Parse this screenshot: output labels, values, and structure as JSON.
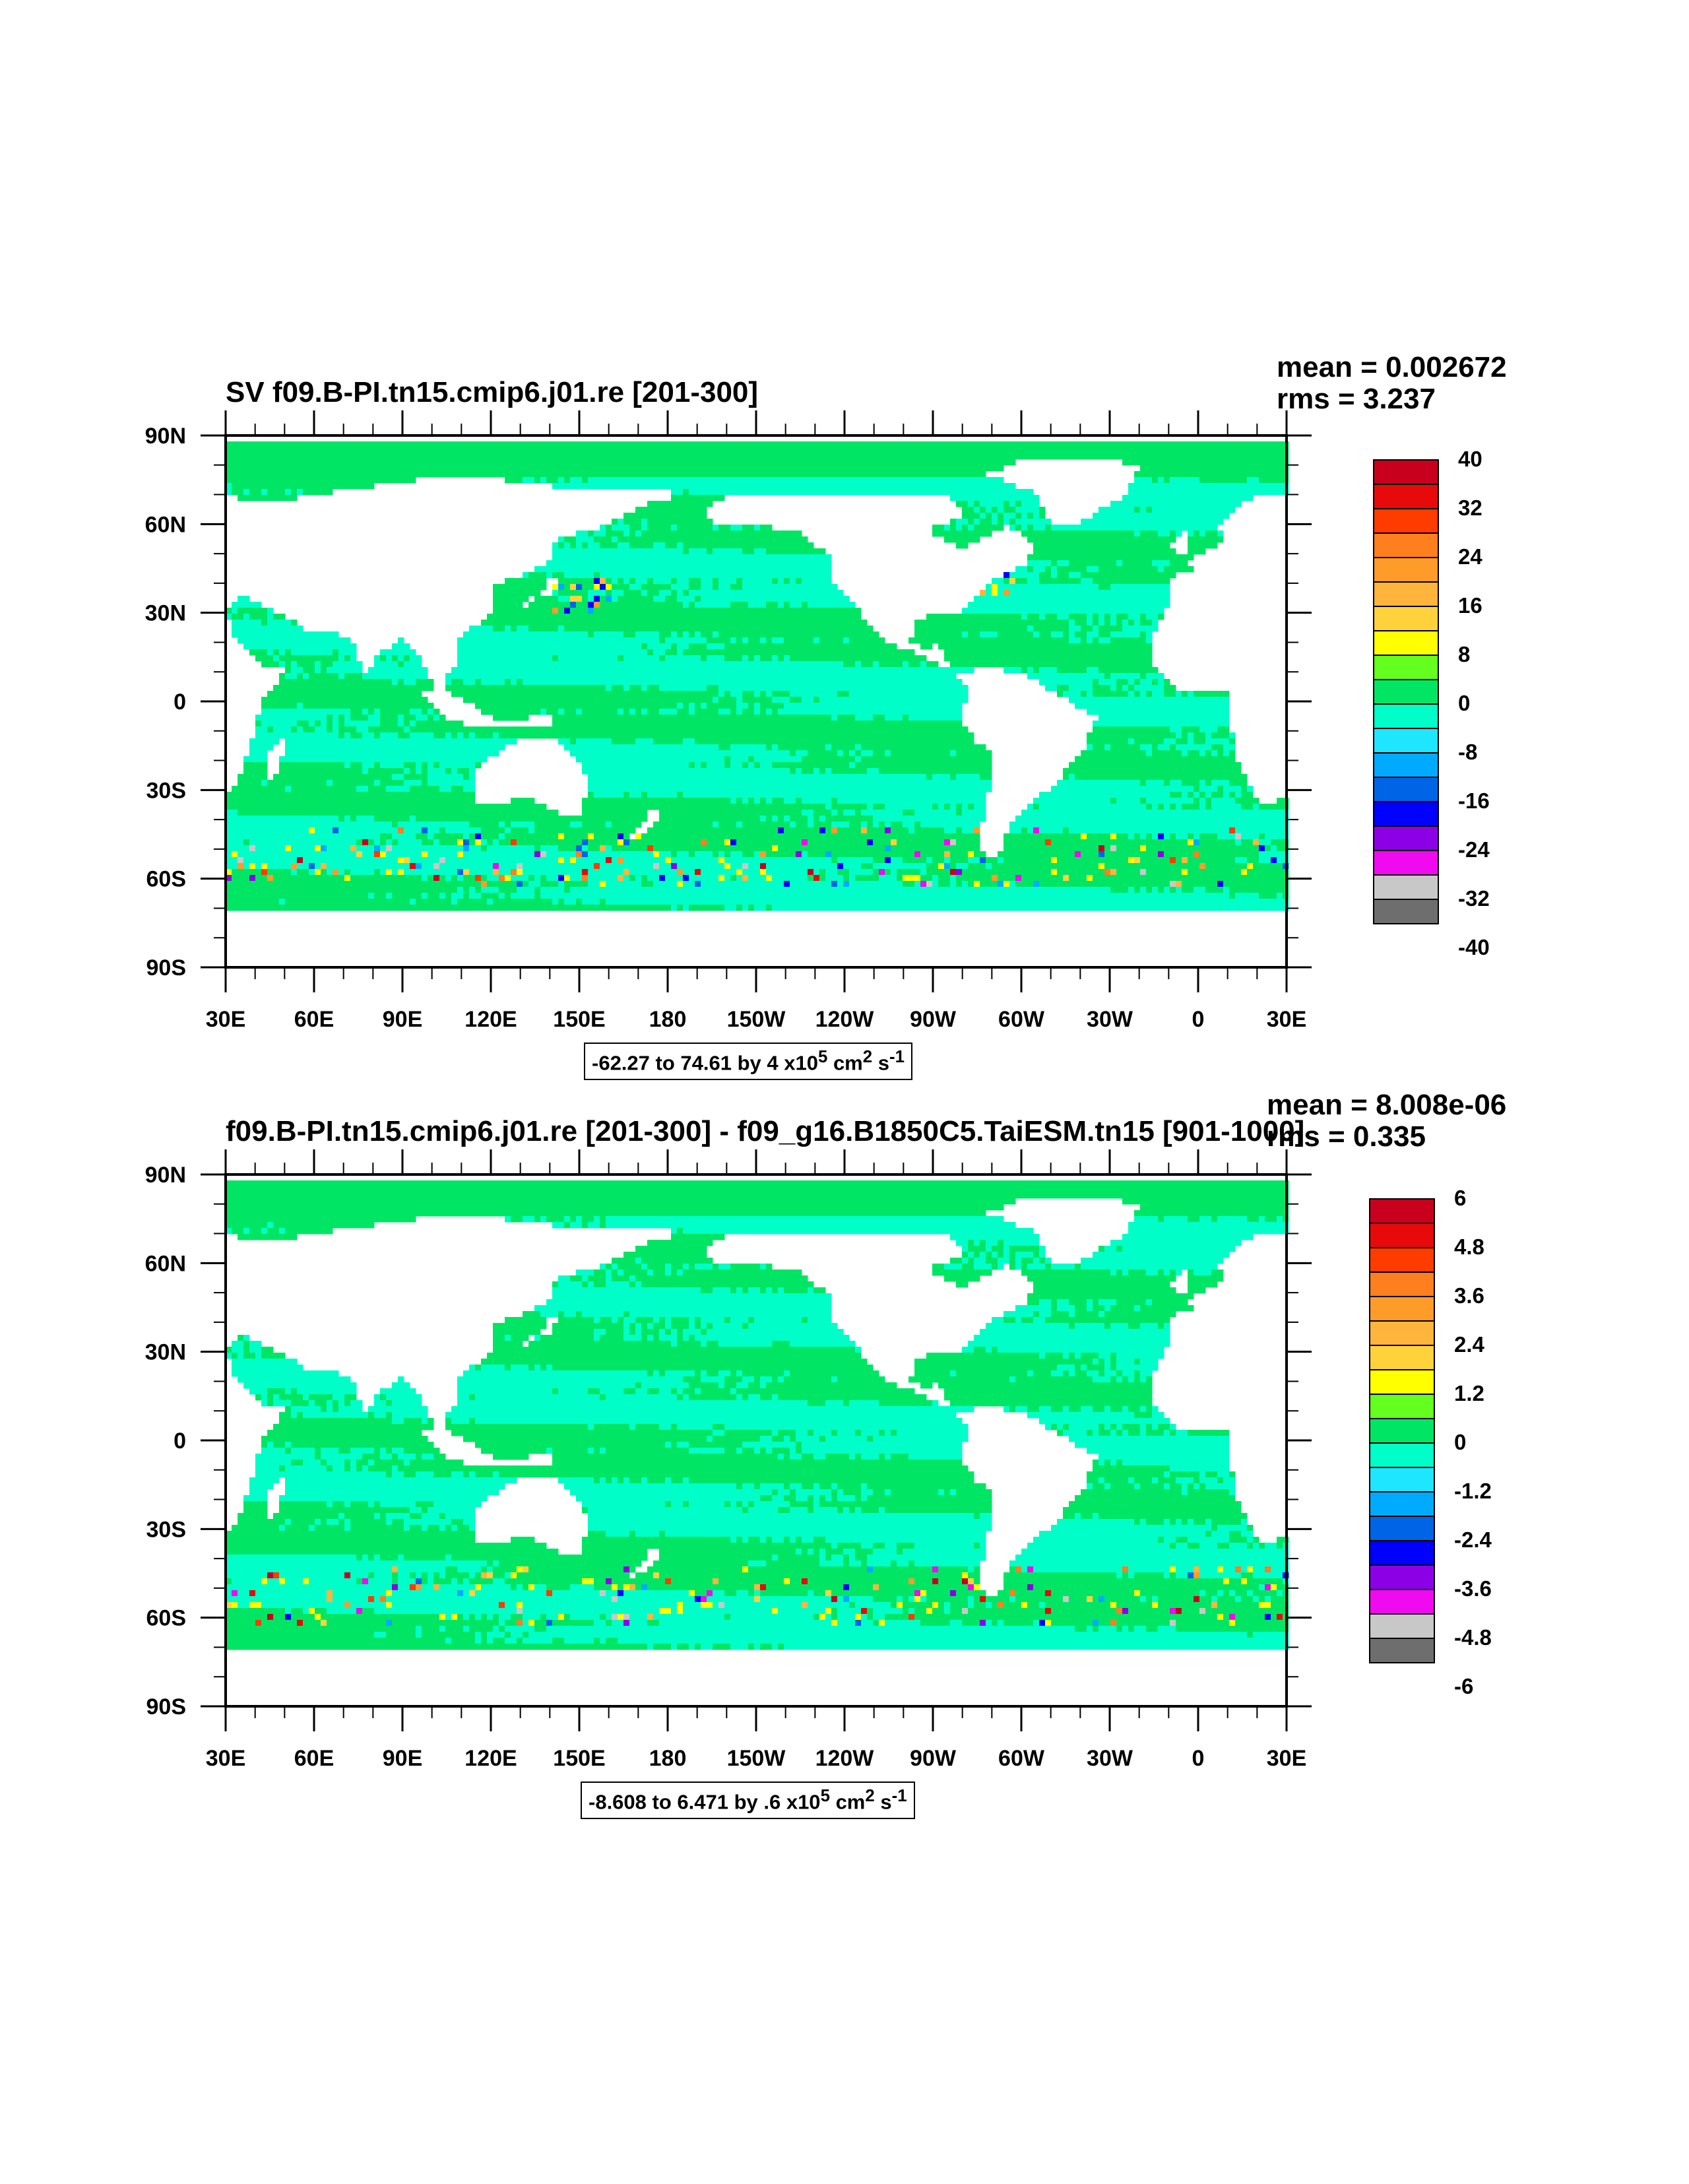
{
  "panels": [
    {
      "title": "SV f09.B-PI.tn15.cmip6.j01.re [201-300]",
      "mean_text": "mean = 0.002672",
      "rms_text": "rms = 3.237",
      "info_prefix": "-62.27 to 74.61 by 4 x10",
      "colorbar_labels": [
        "40",
        "32",
        "24",
        "16",
        "8",
        "0",
        "-8",
        "-16",
        "-24",
        "-32",
        "-40"
      ]
    },
    {
      "title": "f09.B-PI.tn15.cmip6.j01.re [201-300] - f09_g16.B1850C5.TaiESM.tn15 [901-1000]",
      "mean_text": "mean = 8.008e-06",
      "rms_text": "rms = 0.335",
      "info_prefix": "-8.608 to 6.471 by .6 x10",
      "colorbar_labels": [
        "6",
        "4.8",
        "3.6",
        "2.4",
        "1.2",
        "0",
        "-1.2",
        "-2.4",
        "-3.6",
        "-4.8",
        "-6"
      ]
    }
  ],
  "units": {
    "exp": "5",
    "cm": "cm",
    "cm_exp": "2",
    "s": "s",
    "s_exp": "-1"
  },
  "lat_labels": [
    "90N",
    "60N",
    "30N",
    "0",
    "30S",
    "60S",
    "90S"
  ],
  "lon_labels": [
    "30E",
    "60E",
    "90E",
    "120E",
    "150E",
    "180",
    "150W",
    "120W",
    "90W",
    "60W",
    "30W",
    "0",
    "30E"
  ],
  "colors": {
    "palette": [
      "#c8001e",
      "#e60a0a",
      "#ff3c00",
      "#ff7f1e",
      "#ff9b28",
      "#ffb43c",
      "#ffd23c",
      "#ffff00",
      "#64ff1e",
      "#00e664",
      "#00ffc8",
      "#1ee6ff",
      "#00aaff",
      "#0064e6",
      "#0000ff",
      "#8c00e6",
      "#f00af0",
      "#c8c8c8",
      "#6e6e6e"
    ],
    "colorbar": [
      "#c8001e",
      "#e60a0a",
      "#ff3c00",
      "#ff7f1e",
      "#ff9b28",
      "#ffb43c",
      "#ffd23c",
      "#ffff00",
      "#64ff1e",
      "#00e664",
      "#00ffc8",
      "#1ee6ff",
      "#00aaff",
      "#0064e6",
      "#0000ff",
      "#8c00e6",
      "#f00af0",
      "#c8c8c8",
      "#6e6e6e"
    ],
    "ocean_neg": "#00ffc8",
    "ocean_pos": "#00e664"
  }
}
